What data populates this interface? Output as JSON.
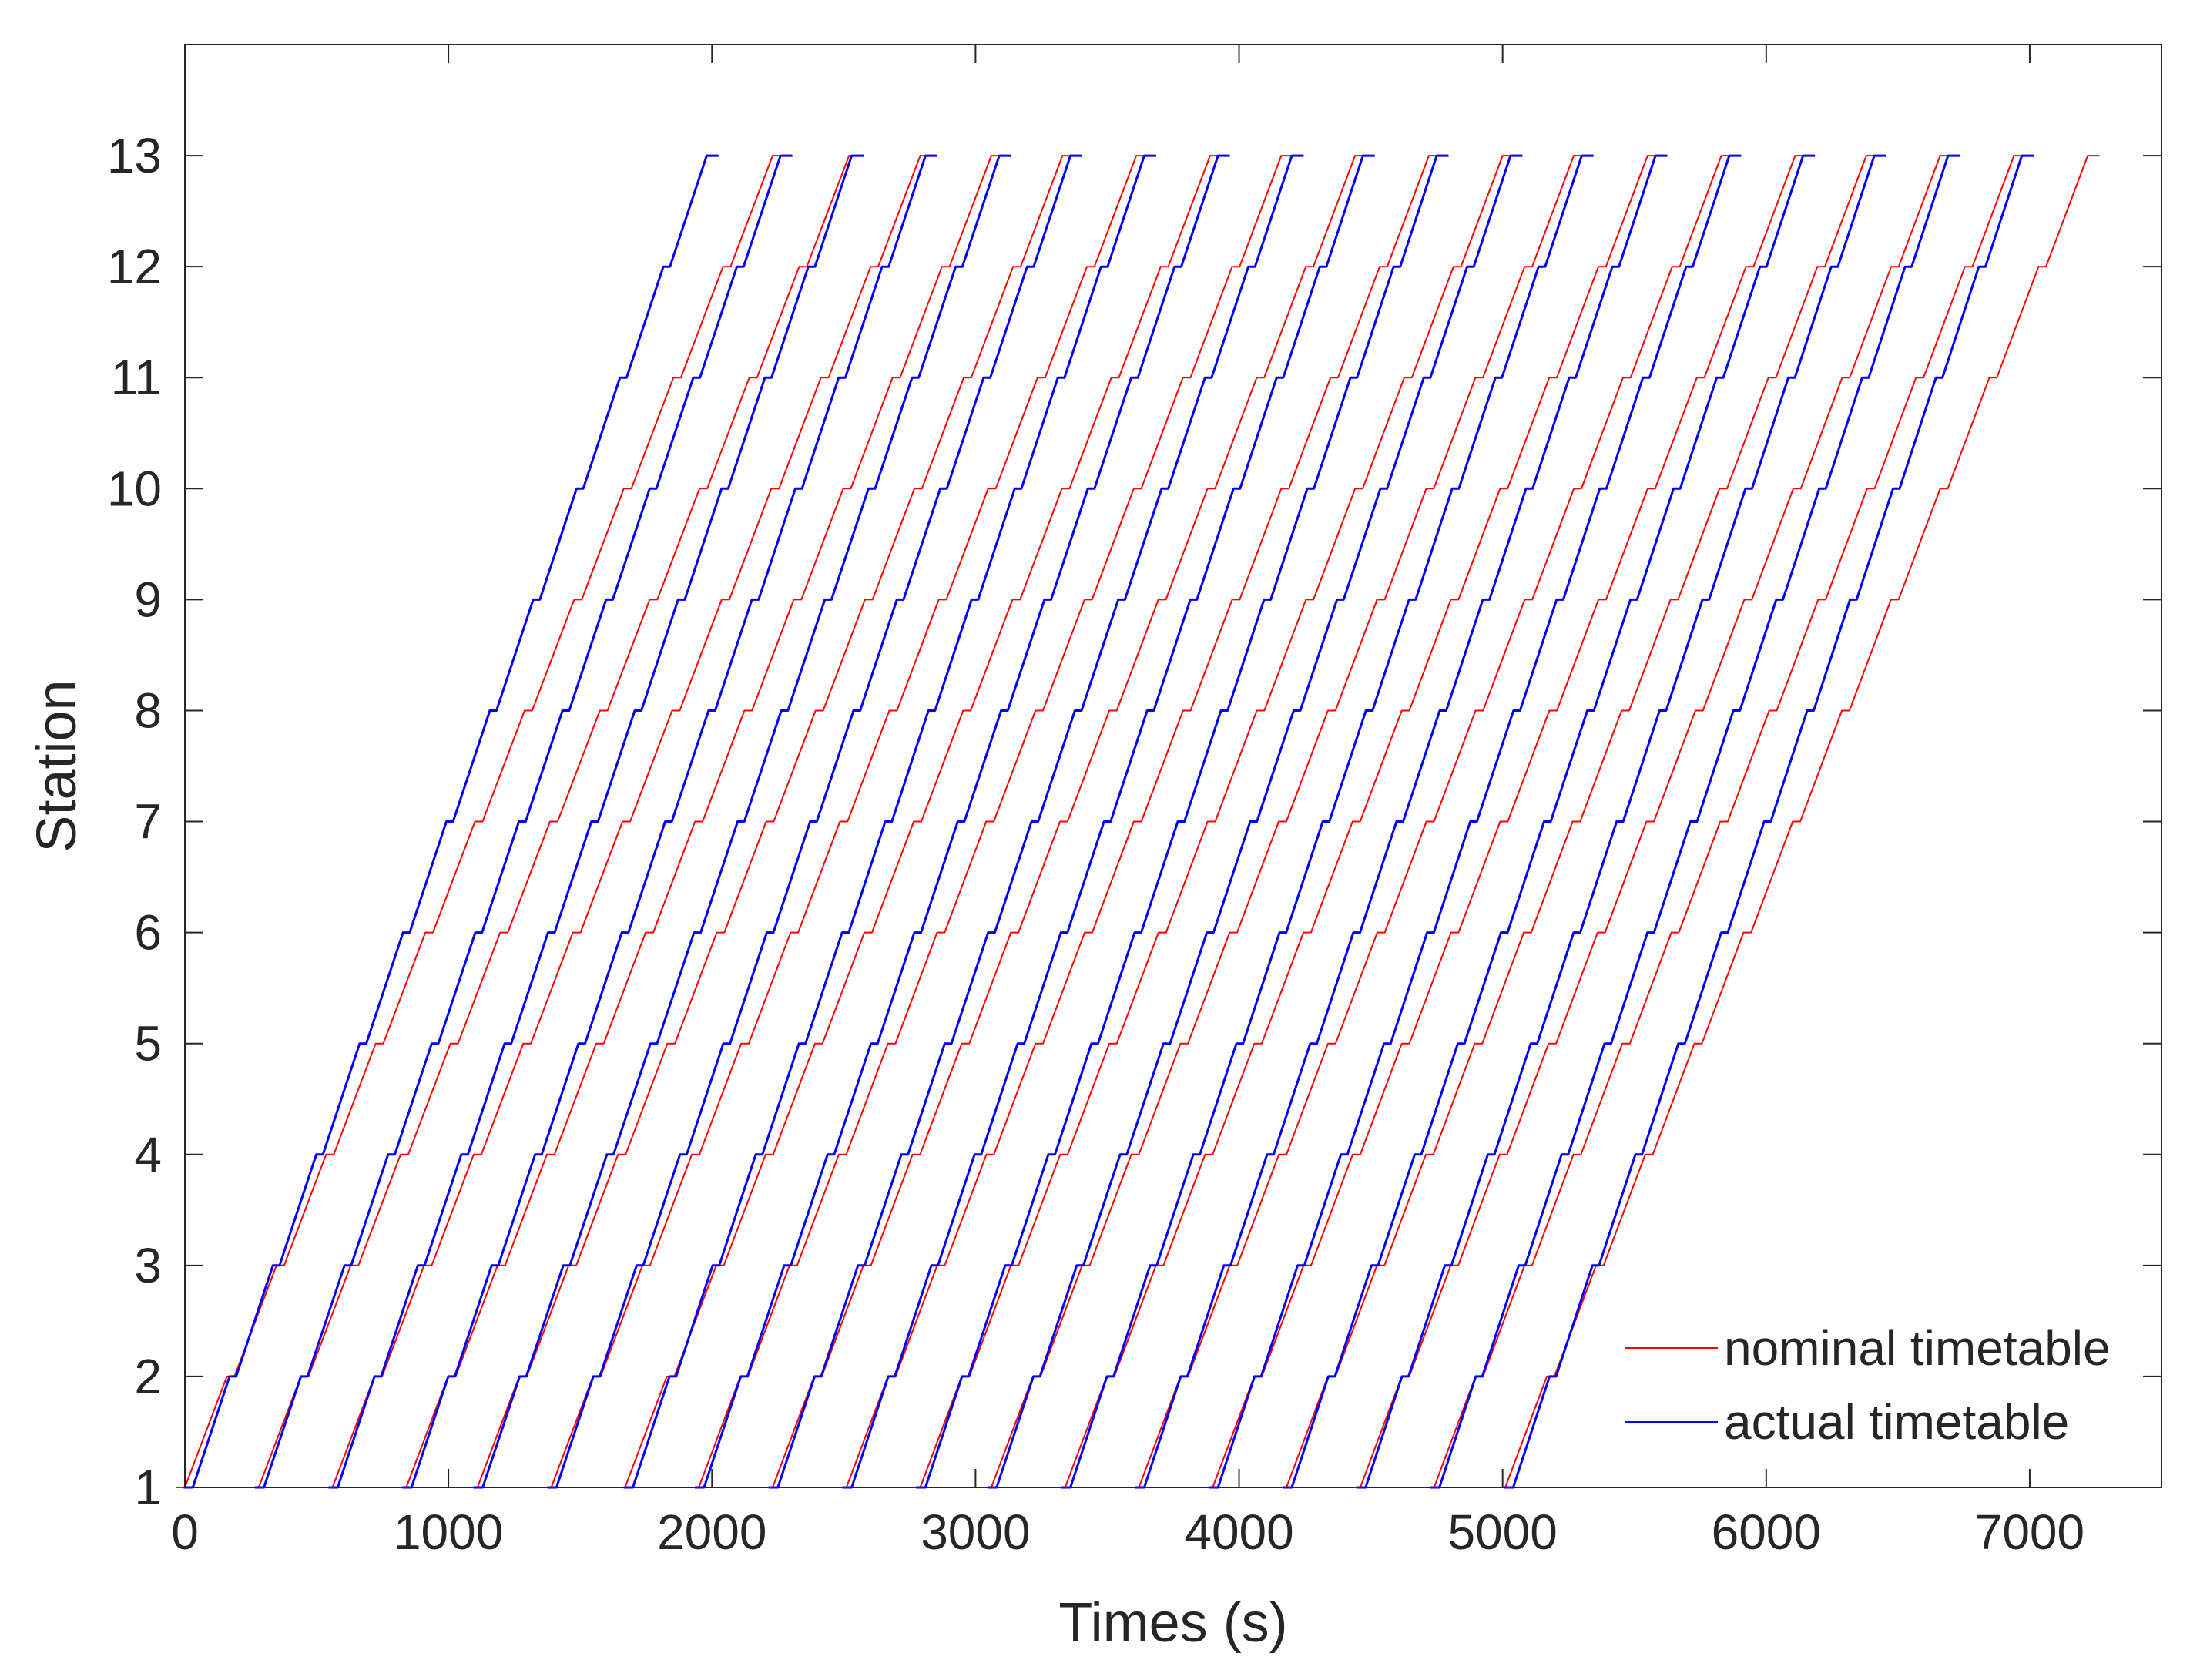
{
  "colors": {
    "nominal": "#ff0000",
    "actual": "#0000ff",
    "axis": "#262626",
    "background": "#ffffff"
  },
  "chart_data": {
    "type": "line",
    "title": "",
    "xlabel": "Times (s)",
    "ylabel": "Station",
    "xlim": [
      0,
      7500
    ],
    "ylim": [
      1,
      14
    ],
    "x_ticks": [
      0,
      1000,
      2000,
      3000,
      4000,
      5000,
      6000,
      7000
    ],
    "y_ticks": [
      1,
      2,
      3,
      4,
      5,
      6,
      7,
      8,
      9,
      10,
      11,
      12,
      13
    ],
    "grid": false,
    "legend_position": "bottom-right",
    "legend": [
      "nominal timetable",
      "actual timetable"
    ],
    "stations": [
      1,
      2,
      3,
      4,
      5,
      6,
      7,
      8,
      9,
      10,
      11,
      12,
      13
    ],
    "series": [
      {
        "name": "nominal timetable",
        "color": "#ff0000",
        "trains_start_times": [
          0,
          280,
          560,
          840,
          1110,
          1390,
          1670,
          1950,
          2230,
          2510,
          2790,
          3060,
          3340,
          3620,
          3900,
          4180,
          4460,
          4740,
          5010
        ],
        "trains_arrival_times_station_13": [
          2230,
          2520,
          2790,
          3060,
          3330,
          3610,
          3890,
          4160,
          4440,
          4720,
          5000,
          5270,
          5550,
          5830,
          6110,
          6380,
          6660,
          6940,
          7220
        ]
      },
      {
        "name": "actual timetable",
        "color": "#0000ff",
        "trains_start_times": [
          30,
          300,
          580,
          860,
          1130,
          1410,
          1700,
          1970,
          2250,
          2530,
          2810,
          3080,
          3360,
          3640,
          3920,
          4200,
          4480,
          4760,
          5040
        ],
        "trains_arrival_times_station_13": [
          1980,
          2260,
          2530,
          2810,
          3090,
          3360,
          3640,
          3920,
          4200,
          4470,
          4750,
          5030,
          5300,
          5580,
          5860,
          6140,
          6410,
          6690,
          6970
        ]
      }
    ]
  }
}
